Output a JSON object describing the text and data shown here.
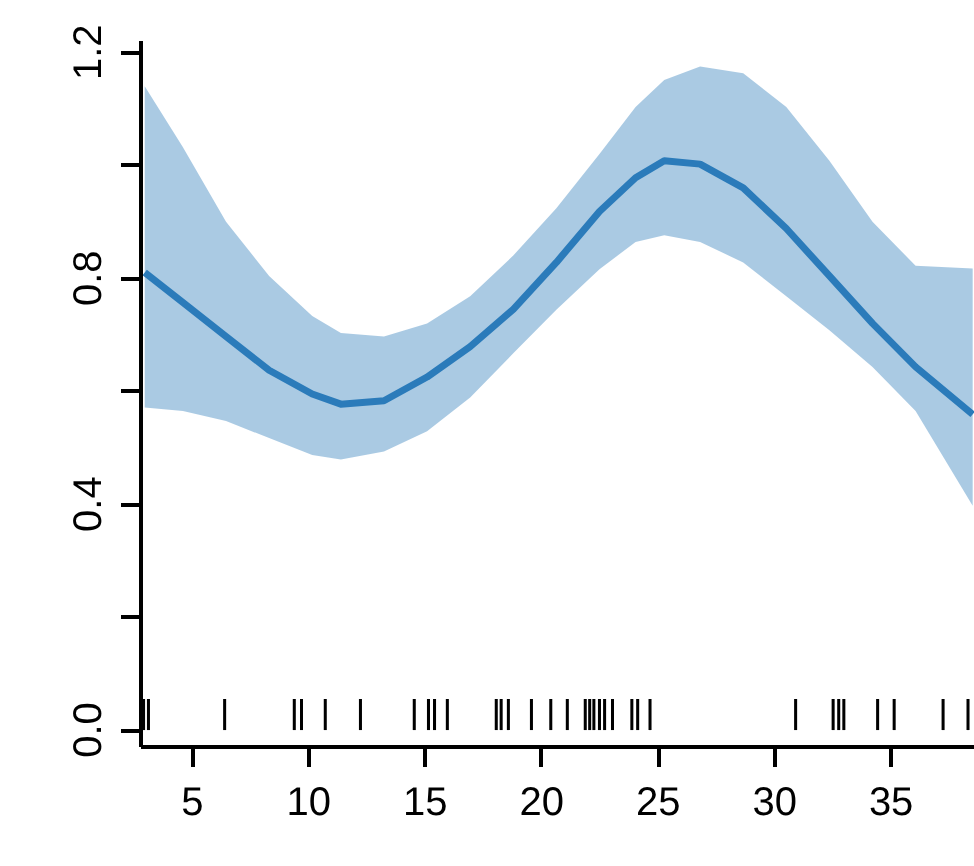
{
  "chart_data": {
    "type": "line",
    "x": [
      2.96,
      4.6,
      6.45,
      8.3,
      10.15,
      11.38,
      13.23,
      15.08,
      16.93,
      18.78,
      20.63,
      22.48,
      24.03,
      25.26,
      26.8,
      28.65,
      30.5,
      32.35,
      34.2,
      36.05,
      38.5
    ],
    "series": [
      {
        "color": "#2b7bba",
        "values": [
          0.81,
          0.757,
          0.697,
          0.637,
          0.595,
          0.577,
          0.583,
          0.625,
          0.679,
          0.745,
          0.828,
          0.918,
          0.978,
          1.008,
          1.002,
          0.96,
          0.888,
          0.804,
          0.72,
          0.643,
          0.559
        ],
        "lower": [
          0.571,
          0.565,
          0.547,
          0.517,
          0.487,
          0.479,
          0.493,
          0.529,
          0.589,
          0.667,
          0.744,
          0.816,
          0.864,
          0.876,
          0.864,
          0.828,
          0.768,
          0.708,
          0.643,
          0.565,
          0.397
        ],
        "upper": [
          1.14,
          1.032,
          0.9,
          0.804,
          0.733,
          0.703,
          0.697,
          0.72,
          0.768,
          0.84,
          0.924,
          1.02,
          1.103,
          1.151,
          1.175,
          1.163,
          1.103,
          1.008,
          0.9,
          0.822,
          0.817
        ]
      },
      {
        "type": "bar",
        "color": "#000000",
        "x": [
          2.91,
          3.12,
          6.39,
          9.38,
          9.69,
          10.71,
          12.22,
          14.53,
          15.14,
          15.4,
          15.95,
          18.05,
          18.26,
          18.57,
          19.56,
          20.39,
          21.1,
          21.87,
          22.06,
          22.24,
          22.48,
          22.7,
          23.04,
          23.87,
          24.12,
          24.65,
          30.9,
          32.51,
          32.75,
          32.97,
          34.42,
          35.13,
          37.23,
          38.3
        ],
        "values": [
          0.055,
          0.055,
          0.055,
          0.055,
          0.055,
          0.055,
          0.055,
          0.055,
          0.055,
          0.055,
          0.055,
          0.055,
          0.055,
          0.055,
          0.055,
          0.055,
          0.055,
          0.055,
          0.055,
          0.055,
          0.055,
          0.055,
          0.055,
          0.055,
          0.055,
          0.055,
          0.055,
          0.055,
          0.055,
          0.055,
          0.055,
          0.055,
          0.055,
          0.055
        ]
      }
    ],
    "xlim": [
      2.8,
      38.6
    ],
    "ylim": [
      -0.03,
      1.22
    ],
    "xticks": [
      5,
      10,
      15,
      20,
      25,
      30,
      35
    ],
    "yticks": [
      {
        "value": 0.0,
        "label": "0.0"
      },
      {
        "value": 0.2,
        "label": null
      },
      {
        "value": 0.4,
        "label": "0.4"
      },
      {
        "value": 0.6,
        "label": null
      },
      {
        "value": 0.8,
        "label": "0.8"
      },
      {
        "value": 1.0,
        "label": null
      },
      {
        "value": 1.2,
        "label": "1.2"
      }
    ],
    "grid": false
  }
}
